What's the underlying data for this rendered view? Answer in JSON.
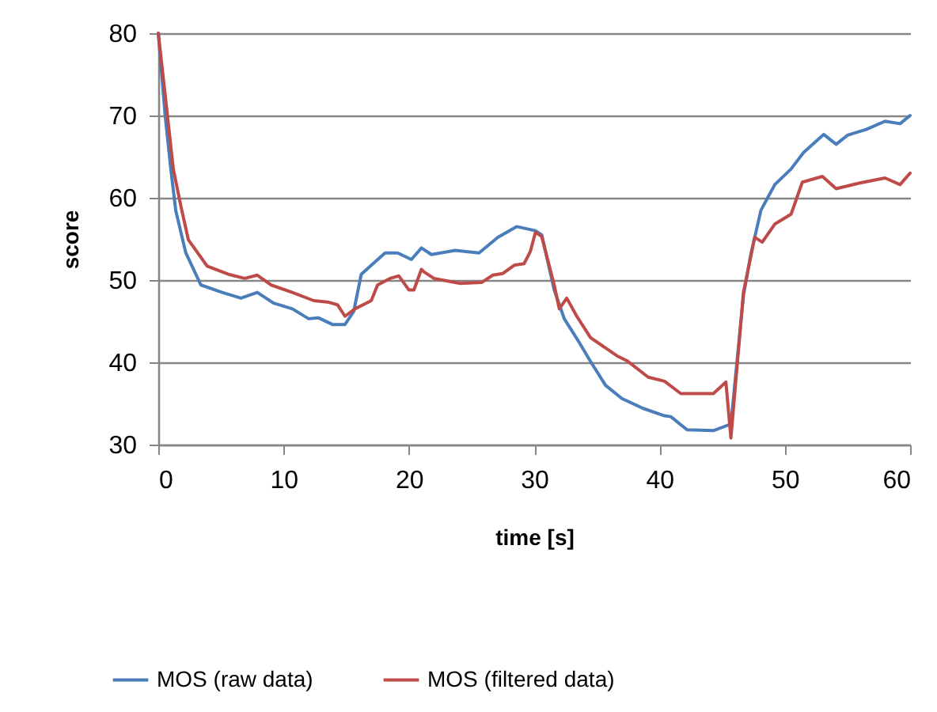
{
  "chart_data": {
    "type": "line",
    "xlabel": "time [s]",
    "ylabel": "score",
    "xlim": [
      0,
      60
    ],
    "xticks": [
      0,
      10,
      20,
      30,
      40,
      50,
      60
    ],
    "ylim": [
      30,
      80
    ],
    "yticks": [
      30,
      40,
      50,
      60,
      70,
      80
    ],
    "grid": "y",
    "legend": "bottom",
    "line_style": "solid",
    "marker": "none",
    "series": [
      {
        "name": "MOS (raw data)",
        "color": "#4a7ebb",
        "x": [
          0,
          0.55,
          1.0,
          1.4,
          2.2,
          3.4,
          5.1,
          6.6,
          7.9,
          9.2,
          10.7,
          12.0,
          12.8,
          13.9,
          14.9,
          15.6,
          16.2,
          17.0,
          18.1,
          19.1,
          20.2,
          21.0,
          21.8,
          23.7,
          25.6,
          27.1,
          28.6,
          30.1,
          30.6,
          31.6,
          32.4,
          33.6,
          34.5,
          35.7,
          37.0,
          38.7,
          40.4,
          40.9,
          42.2,
          44.3,
          45.7,
          46.7,
          47.3,
          48.1,
          49.2,
          50.5,
          51.5,
          53.1,
          54.1,
          55.0,
          56.5,
          58.0,
          59.2,
          60
        ],
        "values": [
          80,
          70,
          63.5,
          58.4,
          53.3,
          49.4,
          48.5,
          47.8,
          48.5,
          47.2,
          46.5,
          45.3,
          45.4,
          44.6,
          44.6,
          46.2,
          50.7,
          51.8,
          53.3,
          53.3,
          52.5,
          53.9,
          53.1,
          53.6,
          53.3,
          55.2,
          56.5,
          56.0,
          55.5,
          48.8,
          45.3,
          42.4,
          40.1,
          37.2,
          35.6,
          34.4,
          33.5,
          33.4,
          31.8,
          31.7,
          32.5,
          48.1,
          53.2,
          58.5,
          61.6,
          63.5,
          65.5,
          67.7,
          66.5,
          67.6,
          68.3,
          69.3,
          69.0,
          70
        ]
      },
      {
        "name": "MOS (filtered data)",
        "color": "#be4b48",
        "x": [
          0,
          0.55,
          1.2,
          1.8,
          2.4,
          3.9,
          5.6,
          6.9,
          7.9,
          9.0,
          10.7,
          12.4,
          13.6,
          14.3,
          14.9,
          15.7,
          17.0,
          17.5,
          18.5,
          19.2,
          20.0,
          20.4,
          21.0,
          21.2,
          22.0,
          24.1,
          25.8,
          26.7,
          27.5,
          28.4,
          29.2,
          29.7,
          30.1,
          30.6,
          31.6,
          32.0,
          32.6,
          33.4,
          34.5,
          36.6,
          37.4,
          39.1,
          40.4,
          41.7,
          44.3,
          45.3,
          45.7,
          46.7,
          47.6,
          48.2,
          49.2,
          50.5,
          51.4,
          53.0,
          54.1,
          56.0,
          58.0,
          59.2,
          60
        ],
        "values": [
          80,
          72.5,
          63.5,
          59,
          54.9,
          51.7,
          50.7,
          50.2,
          50.6,
          49.4,
          48.5,
          47.5,
          47.3,
          47.0,
          45.6,
          46.5,
          47.5,
          49.4,
          50.2,
          50.5,
          48.8,
          48.8,
          51.3,
          51.0,
          50.2,
          49.6,
          49.7,
          50.6,
          50.8,
          51.8,
          52.0,
          53.5,
          55.8,
          55.3,
          49.4,
          46.5,
          47.8,
          45.6,
          43.0,
          40.8,
          40.2,
          38.2,
          37.7,
          36.2,
          36.2,
          37.6,
          30.8,
          48.5,
          55.2,
          54.6,
          56.8,
          58.0,
          61.9,
          62.6,
          61.1,
          61.8,
          62.4,
          61.6,
          63
        ]
      }
    ]
  }
}
